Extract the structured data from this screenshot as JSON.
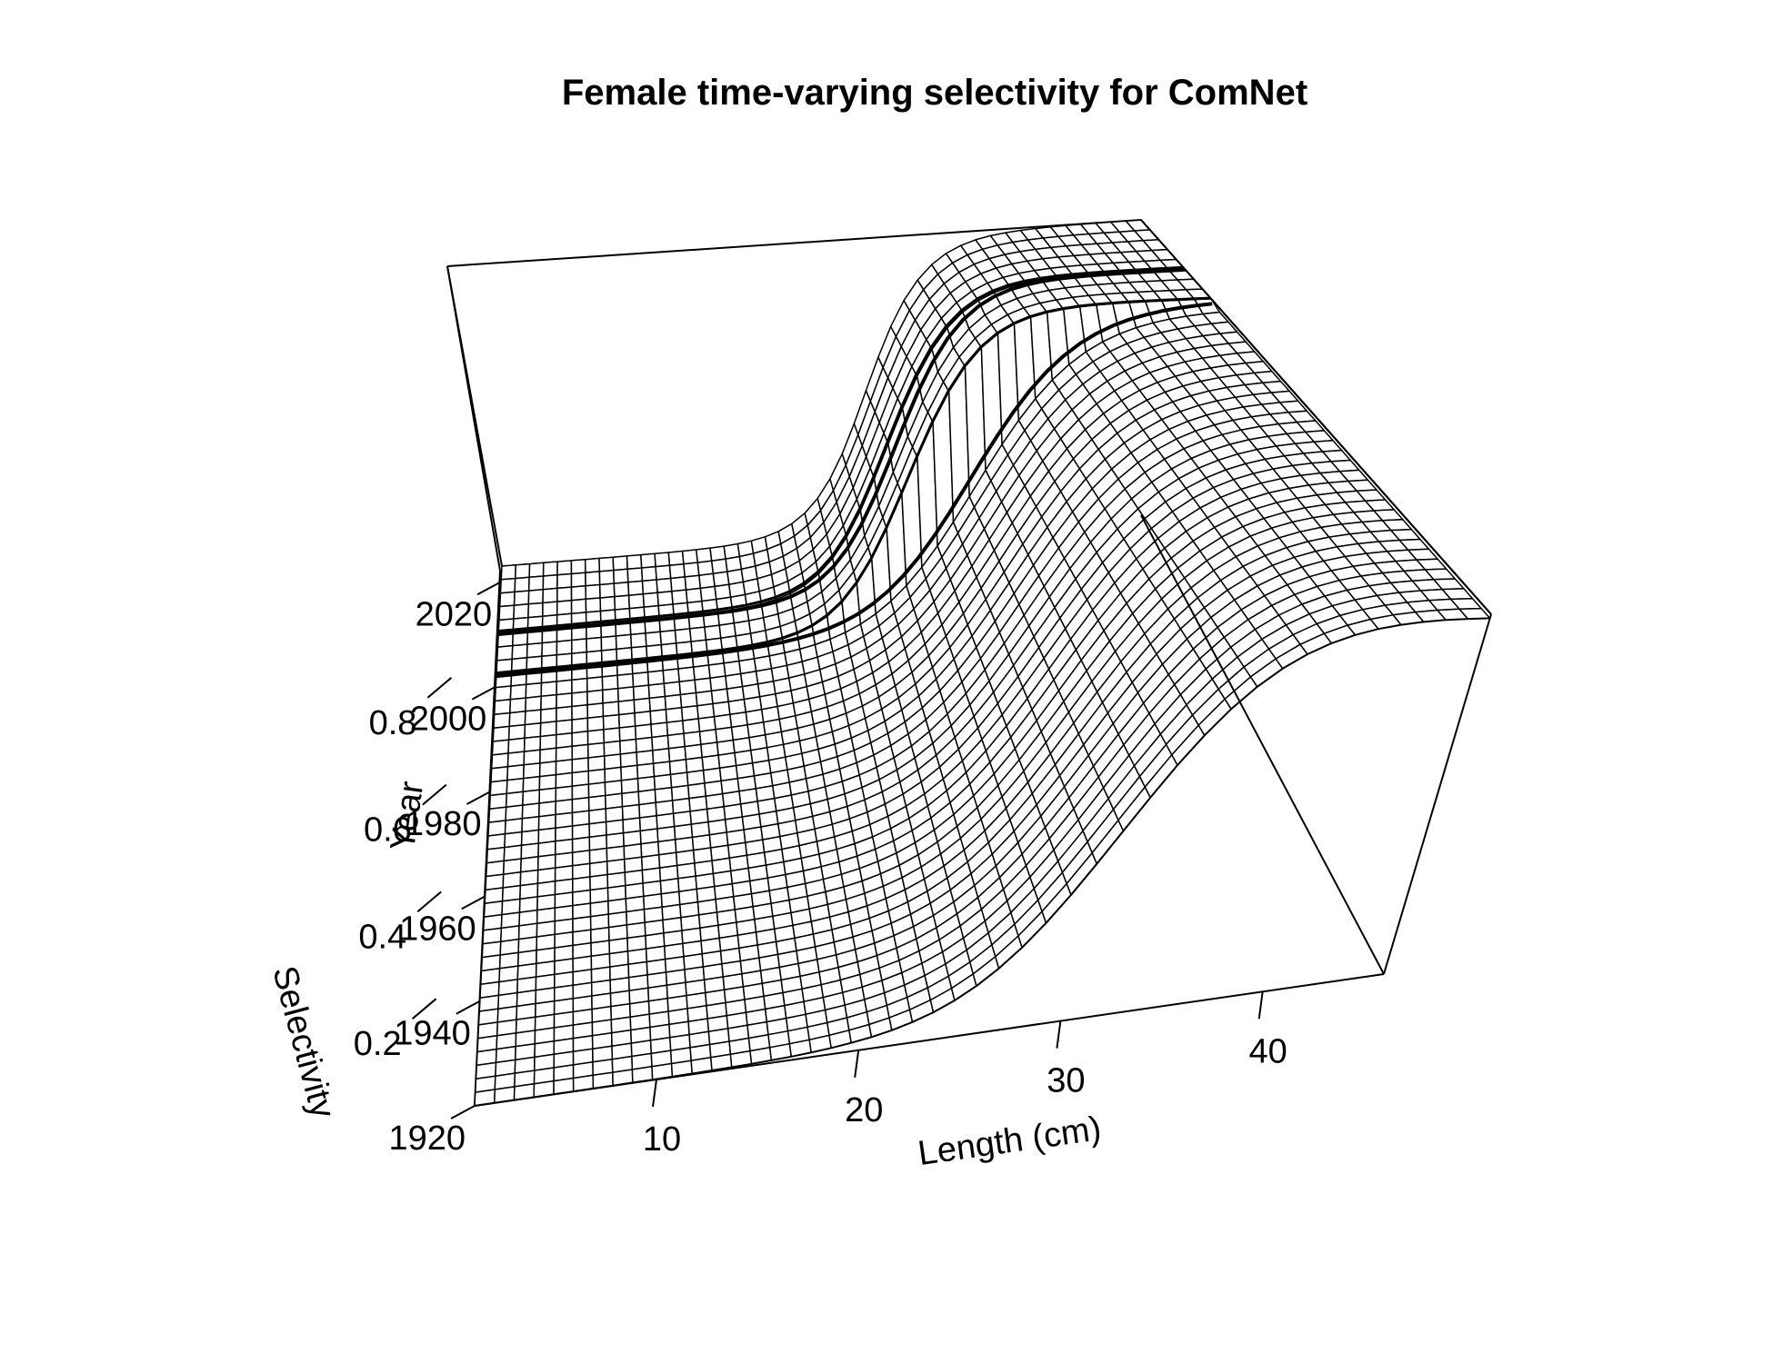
{
  "chart_data": {
    "type": "surface3d",
    "title": "Female time-varying selectivity for ComNet",
    "xlabel": "Length (cm)",
    "ylabel": "Year",
    "zlabel": "Selectivity",
    "x_ticks": [
      "10",
      "20",
      "30",
      "40"
    ],
    "y_ticks": [
      "1920",
      "1940",
      "1960",
      "1980",
      "2000",
      "2020"
    ],
    "z_ticks": [
      "0.2",
      "0.4",
      "0.6",
      "0.8"
    ],
    "xlim": [
      1,
      46
    ],
    "ylim": [
      1920,
      2023
    ],
    "zlim": [
      0,
      1
    ],
    "series": [
      {
        "years": "1920-2002",
        "inflection_cm": 32,
        "slope": 0.32,
        "asymptote": 1.0
      },
      {
        "years": "2003-2010",
        "inflection_cm": 28,
        "slope": 0.45,
        "asymptote": 1.0
      },
      {
        "years": "2011-2023",
        "inflection_cm": 27.5,
        "slope": 0.45,
        "asymptote": 1.0
      }
    ],
    "highlighted_years": [
      2002,
      2010
    ],
    "grid": false,
    "bounding_box": true
  }
}
